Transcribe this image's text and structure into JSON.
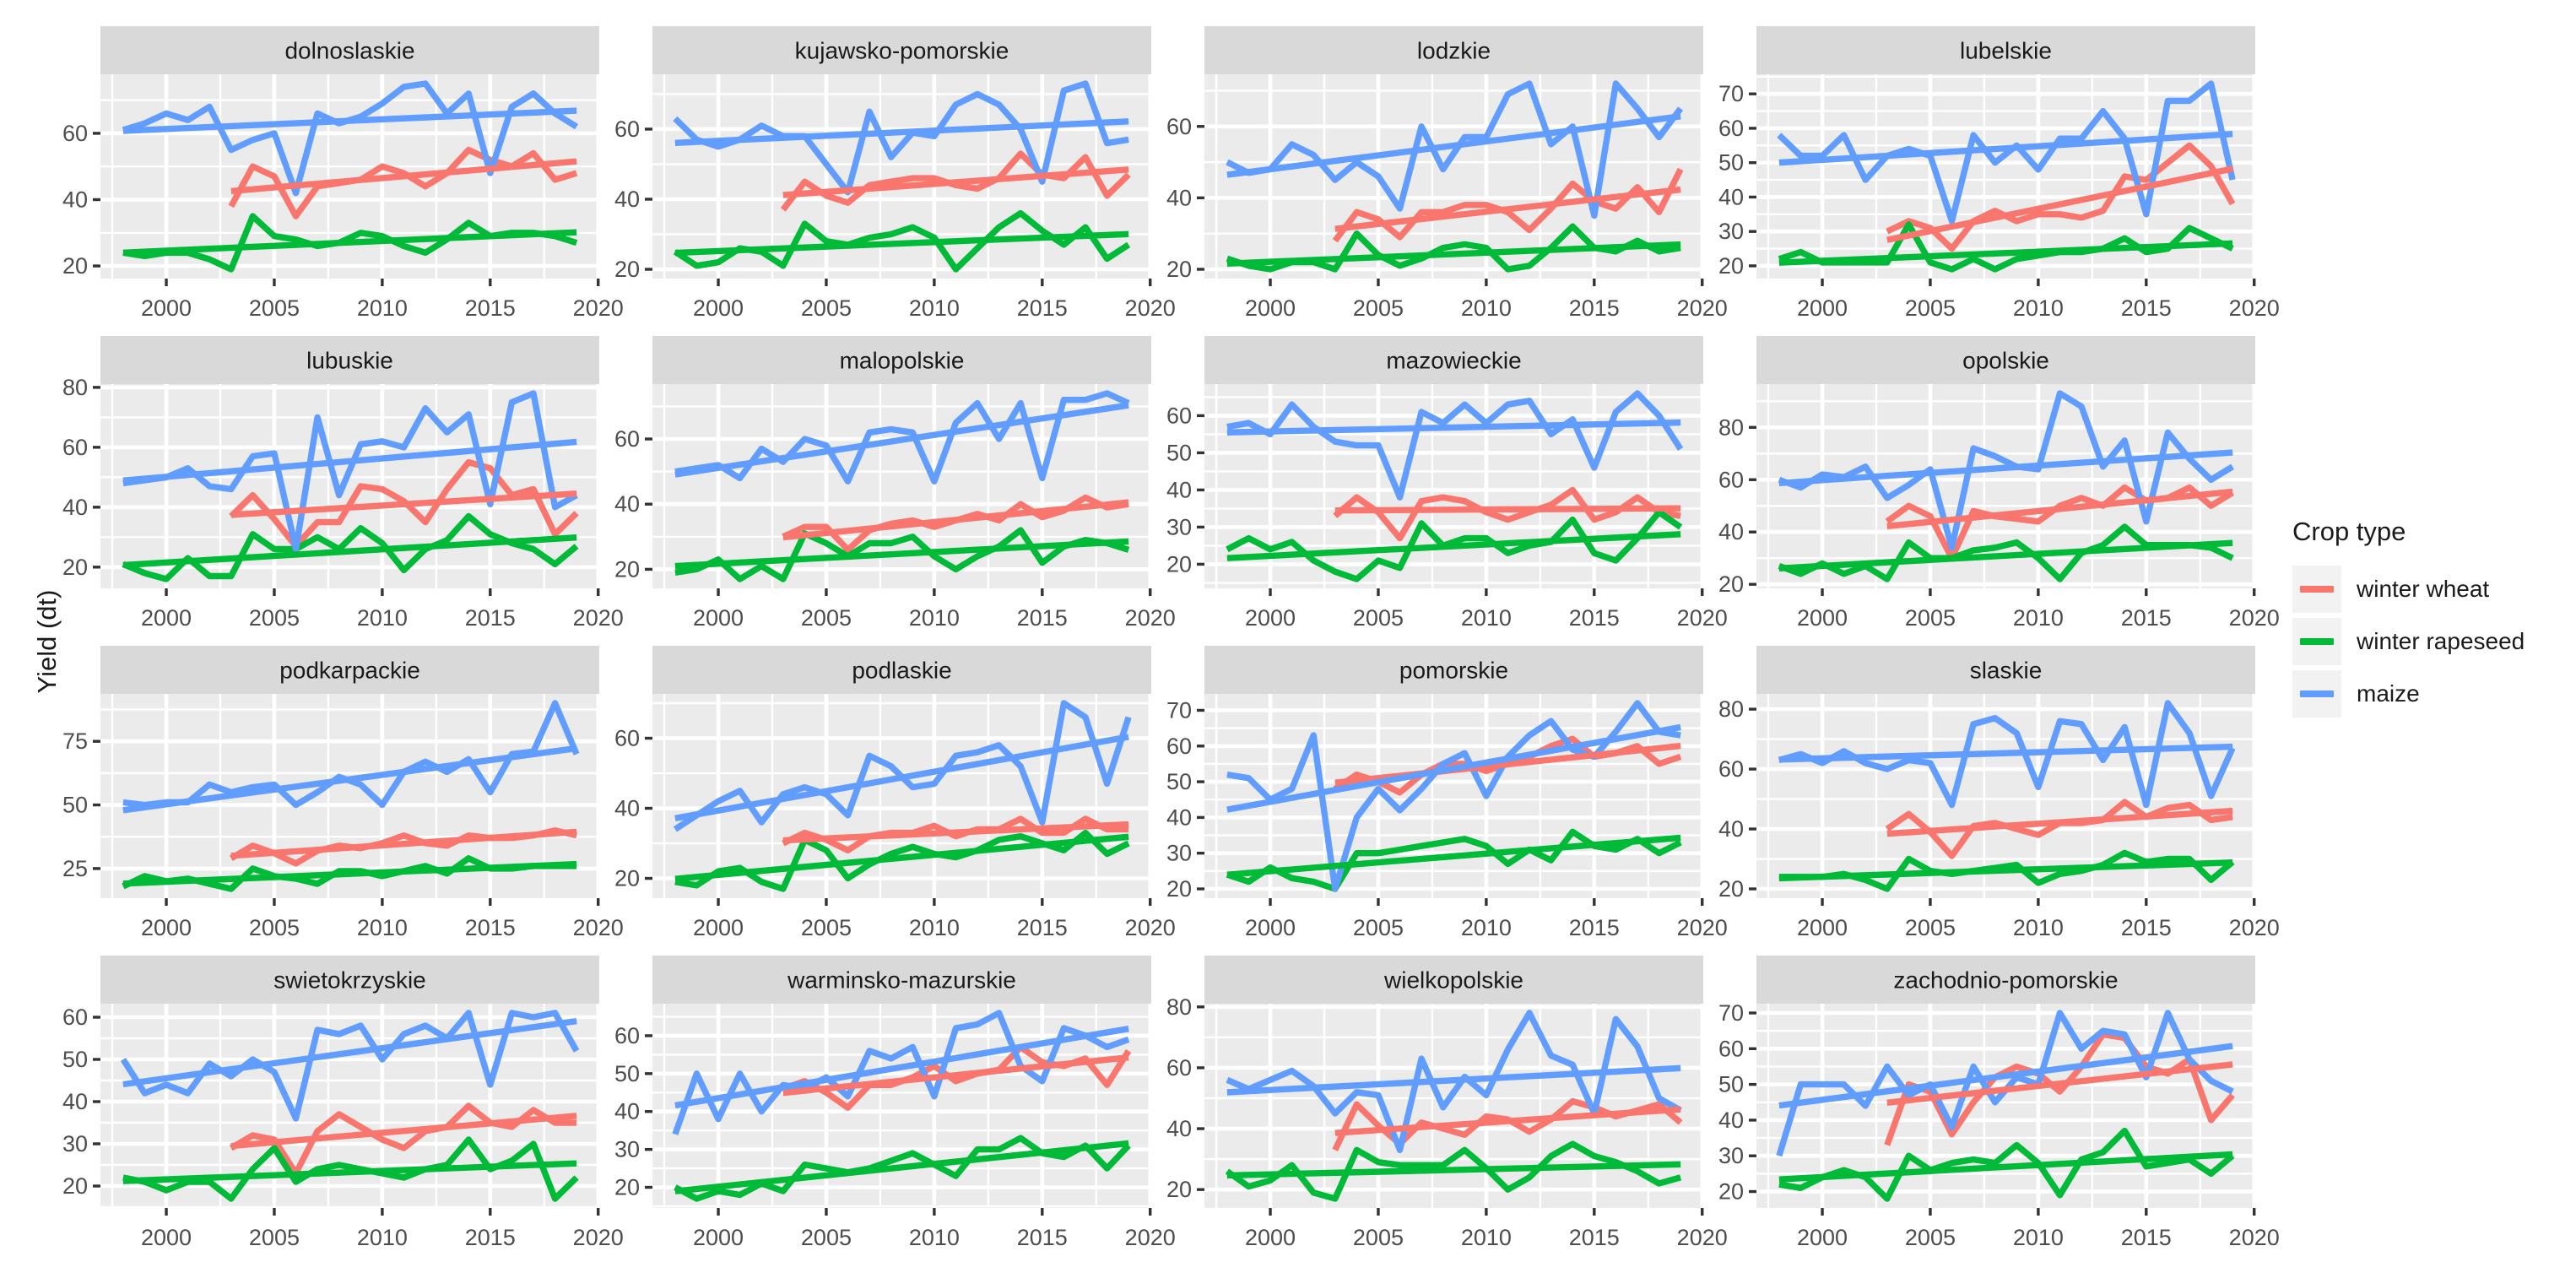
{
  "chart_data": {
    "type": "line",
    "title": "",
    "ylabel": "Yield (dt)",
    "xlabel": "",
    "grid": "on",
    "legend_position": "right",
    "x_ticks": [
      2000,
      2005,
      2010,
      2015,
      2020
    ],
    "x_minor_ticks": [
      1997.5,
      2002.5,
      2007.5,
      2012.5,
      2017.5
    ],
    "x_domain": [
      1996.95,
      2020.05
    ],
    "legend": {
      "title": "Crop type",
      "entries": [
        {
          "label": "winter wheat",
          "color": "#F8766D"
        },
        {
          "label": "winter rapeseed",
          "color": "#00BA38"
        },
        {
          "label": "maize",
          "color": "#619CFF"
        }
      ]
    },
    "series_meta": {
      "winter_wheat": {
        "color": "#F8766D",
        "start_year": 2003
      },
      "winter_rapeseed": {
        "color": "#00BA38",
        "start_year": 1998
      },
      "maize": {
        "color": "#619CFF",
        "start_year": 1998
      }
    },
    "trend": "linear least-squares per series (geom_smooth lm, no CI band)",
    "facets": [
      {
        "name": "dolnoslaskie",
        "y_ticks": [
          20,
          40,
          60
        ],
        "maize": [
          61,
          63,
          66,
          64,
          68,
          55,
          58,
          60,
          42,
          66,
          63,
          65,
          69,
          74,
          75,
          66,
          72,
          48,
          68,
          72,
          66,
          62
        ],
        "winter_wheat": [
          38,
          50,
          47,
          35,
          44,
          45,
          46,
          50,
          48,
          44,
          48,
          55,
          52,
          50,
          54,
          46,
          48
        ],
        "winter_rapeseed": [
          24,
          23,
          24,
          24,
          22,
          19,
          35,
          29,
          28,
          26,
          27,
          30,
          29,
          26,
          24,
          28,
          33,
          29,
          30,
          30,
          29,
          27
        ]
      },
      {
        "name": "kujawsko-pomorskie",
        "y_ticks": [
          20,
          40,
          60
        ],
        "maize": [
          63,
          57,
          55,
          57,
          61,
          58,
          58,
          50,
          42,
          65,
          52,
          59,
          58,
          67,
          70,
          67,
          60,
          45,
          71,
          73,
          56,
          57
        ],
        "winter_wheat": [
          37,
          45,
          41,
          39,
          44,
          45,
          46,
          46,
          44,
          43,
          46,
          53,
          47,
          46,
          52,
          41,
          47
        ],
        "winter_rapeseed": [
          25,
          21,
          22,
          26,
          25,
          21,
          33,
          28,
          27,
          29,
          30,
          32,
          29,
          20,
          26,
          32,
          36,
          31,
          27,
          32,
          23,
          27
        ]
      },
      {
        "name": "lodzkie",
        "y_ticks": [
          20,
          40,
          60
        ],
        "maize": [
          50,
          47,
          48,
          55,
          52,
          45,
          50,
          46,
          37,
          60,
          48,
          57,
          57,
          69,
          72,
          55,
          60,
          35,
          72,
          65,
          57,
          65
        ],
        "winter_wheat": [
          28,
          36,
          34,
          29,
          36,
          36,
          38,
          38,
          36,
          31,
          37,
          44,
          39,
          37,
          43,
          36,
          48
        ],
        "winter_rapeseed": [
          23,
          21,
          20,
          22,
          22,
          20,
          30,
          24,
          21,
          23,
          26,
          27,
          26,
          20,
          21,
          26,
          32,
          26,
          25,
          28,
          25,
          26
        ]
      },
      {
        "name": "lubelskie",
        "y_ticks": [
          20,
          30,
          40,
          50,
          60,
          70
        ],
        "maize": [
          58,
          52,
          52,
          58,
          45,
          52,
          54,
          52,
          33,
          58,
          50,
          55,
          48,
          57,
          57,
          65,
          57,
          35,
          68,
          68,
          73,
          45
        ],
        "winter_wheat": [
          30,
          33,
          31,
          25,
          33,
          36,
          33,
          35,
          35,
          34,
          36,
          46,
          45,
          50,
          55,
          49,
          38
        ],
        "winter_rapeseed": [
          22,
          24,
          21,
          21,
          21,
          21,
          32,
          21,
          19,
          22,
          19,
          22,
          23,
          24,
          24,
          25,
          28,
          24,
          25,
          31,
          28,
          25
        ]
      },
      {
        "name": "lubuskie",
        "y_ticks": [
          20,
          40,
          60,
          80
        ],
        "maize": [
          48,
          49,
          50,
          53,
          47,
          46,
          57,
          58,
          26,
          70,
          44,
          61,
          62,
          60,
          73,
          65,
          71,
          41,
          75,
          78,
          40,
          44
        ],
        "winter_wheat": [
          37,
          44,
          36,
          27,
          35,
          35,
          47,
          46,
          42,
          35,
          46,
          55,
          53,
          44,
          46,
          31,
          38
        ],
        "winter_rapeseed": [
          21,
          18,
          16,
          23,
          17,
          17,
          31,
          26,
          26,
          30,
          26,
          33,
          28,
          19,
          26,
          29,
          37,
          31,
          28,
          26,
          21,
          27
        ]
      },
      {
        "name": "malopolskie",
        "y_ticks": [
          20,
          40,
          60
        ],
        "maize": [
          50,
          51,
          52,
          48,
          57,
          53,
          60,
          58,
          47,
          62,
          63,
          62,
          47,
          65,
          71,
          60,
          71,
          48,
          72,
          72,
          74,
          71
        ],
        "winter_wheat": [
          30,
          33,
          33,
          26,
          32,
          34,
          35,
          33,
          35,
          37,
          35,
          40,
          36,
          38,
          42,
          39,
          40
        ],
        "winter_rapeseed": [
          19,
          20,
          23,
          17,
          21,
          17,
          31,
          28,
          24,
          28,
          28,
          30,
          24,
          20,
          24,
          27,
          32,
          22,
          27,
          29,
          28,
          26
        ]
      },
      {
        "name": "mazowieckie",
        "y_ticks": [
          20,
          30,
          40,
          50,
          60
        ],
        "maize": [
          57,
          58,
          55,
          63,
          57,
          53,
          52,
          52,
          38,
          61,
          58,
          63,
          58,
          63,
          64,
          55,
          59,
          46,
          61,
          66,
          60,
          51
        ],
        "winter_wheat": [
          33,
          38,
          34,
          27,
          37,
          38,
          37,
          34,
          32,
          34,
          36,
          40,
          32,
          34,
          38,
          34,
          33
        ],
        "winter_rapeseed": [
          24,
          27,
          24,
          26,
          21,
          18,
          16,
          21,
          19,
          31,
          25,
          27,
          27,
          23,
          25,
          26,
          32,
          23,
          21,
          27,
          34,
          30
        ]
      },
      {
        "name": "opolskie",
        "y_ticks": [
          20,
          40,
          60,
          80
        ],
        "maize": [
          60,
          57,
          62,
          61,
          65,
          53,
          58,
          64,
          34,
          72,
          69,
          65,
          64,
          93,
          88,
          65,
          75,
          44,
          78,
          68,
          60,
          65
        ],
        "winter_wheat": [
          44,
          50,
          46,
          30,
          48,
          46,
          45,
          44,
          50,
          53,
          50,
          57,
          52,
          53,
          57,
          50,
          55
        ],
        "winter_rapeseed": [
          27,
          24,
          28,
          24,
          27,
          22,
          36,
          30,
          30,
          33,
          34,
          36,
          30,
          22,
          32,
          35,
          42,
          35,
          35,
          35,
          34,
          30
        ]
      },
      {
        "name": "podkarpackie",
        "y_ticks": [
          25,
          50,
          75
        ],
        "maize": [
          51,
          50,
          51,
          51,
          58,
          55,
          57,
          58,
          50,
          55,
          61,
          58,
          50,
          63,
          67,
          63,
          68,
          55,
          70,
          71,
          90,
          70
        ],
        "winter_wheat": [
          29,
          34,
          31,
          27,
          32,
          34,
          33,
          35,
          38,
          35,
          34,
          38,
          37,
          37,
          38,
          40,
          38
        ],
        "winter_rapeseed": [
          18,
          22,
          20,
          21,
          19,
          17,
          25,
          22,
          21,
          19,
          24,
          24,
          22,
          24,
          26,
          23,
          29,
          25,
          25,
          26,
          26,
          26
        ]
      },
      {
        "name": "podlaskie",
        "y_ticks": [
          20,
          40,
          60
        ],
        "maize": [
          34,
          38,
          42,
          45,
          36,
          44,
          46,
          44,
          38,
          55,
          52,
          46,
          47,
          55,
          56,
          58,
          52,
          36,
          70,
          66,
          47,
          66
        ],
        "winter_wheat": [
          30,
          33,
          31,
          28,
          32,
          33,
          33,
          35,
          32,
          34,
          34,
          37,
          33,
          33,
          37,
          34,
          34
        ],
        "winter_rapeseed": [
          19,
          18,
          22,
          23,
          19,
          17,
          31,
          28,
          20,
          24,
          27,
          29,
          27,
          26,
          28,
          31,
          32,
          30,
          28,
          33,
          27,
          30
        ]
      },
      {
        "name": "pomorskie",
        "y_ticks": [
          20,
          30,
          40,
          50,
          60,
          70
        ],
        "maize": [
          52,
          51,
          45,
          48,
          63,
          20,
          40,
          48,
          42,
          48,
          55,
          58,
          46,
          57,
          63,
          67,
          59,
          57,
          64,
          72,
          64,
          63
        ],
        "winter_wheat": [
          48,
          52,
          50,
          47,
          52,
          55,
          55,
          53,
          55,
          57,
          60,
          62,
          57,
          58,
          60,
          55,
          57
        ],
        "winter_rapeseed": [
          24,
          22,
          26,
          23,
          22,
          20,
          30,
          30,
          31,
          32,
          33,
          34,
          32,
          27,
          31,
          28,
          36,
          32,
          31,
          34,
          30,
          33
        ]
      },
      {
        "name": "slaskie",
        "y_ticks": [
          20,
          40,
          60,
          80
        ],
        "maize": [
          63,
          65,
          62,
          66,
          62,
          60,
          63,
          62,
          48,
          75,
          77,
          72,
          54,
          76,
          75,
          63,
          74,
          48,
          82,
          72,
          51,
          67
        ],
        "winter_wheat": [
          40,
          45,
          39,
          31,
          41,
          42,
          40,
          38,
          42,
          42,
          43,
          49,
          44,
          47,
          48,
          43,
          44
        ],
        "winter_rapeseed": [
          24,
          24,
          24,
          25,
          23,
          20,
          30,
          26,
          25,
          26,
          27,
          28,
          22,
          25,
          26,
          28,
          32,
          29,
          30,
          30,
          23,
          29
        ]
      },
      {
        "name": "swietokrzyskie",
        "y_ticks": [
          20,
          30,
          40,
          50,
          60
        ],
        "maize": [
          50,
          42,
          44,
          42,
          49,
          46,
          50,
          47,
          36,
          57,
          56,
          58,
          50,
          56,
          58,
          55,
          61,
          44,
          61,
          60,
          61,
          52
        ],
        "winter_wheat": [
          29,
          32,
          31,
          23,
          33,
          37,
          34,
          31,
          29,
          33,
          34,
          39,
          35,
          34,
          38,
          35,
          35
        ],
        "winter_rapeseed": [
          22,
          21,
          19,
          21,
          21,
          17,
          24,
          29,
          21,
          24,
          25,
          24,
          23,
          22,
          24,
          25,
          31,
          24,
          26,
          30,
          17,
          22
        ]
      },
      {
        "name": "warminsko-mazurskie",
        "y_ticks": [
          20,
          30,
          40,
          50,
          60
        ],
        "maize": [
          34,
          50,
          38,
          50,
          40,
          47,
          46,
          49,
          44,
          56,
          54,
          57,
          44,
          62,
          63,
          66,
          52,
          48,
          62,
          60,
          57,
          59
        ],
        "winter_wheat": [
          46,
          48,
          45,
          41,
          47,
          47,
          49,
          52,
          48,
          50,
          51,
          57,
          53,
          52,
          54,
          47,
          56
        ],
        "winter_rapeseed": [
          20,
          17,
          19,
          18,
          21,
          19,
          26,
          25,
          24,
          25,
          27,
          29,
          26,
          23,
          30,
          30,
          33,
          29,
          28,
          31,
          25,
          31
        ]
      },
      {
        "name": "wielkopolskie",
        "y_ticks": [
          20,
          40,
          60,
          80
        ],
        "maize": [
          56,
          53,
          56,
          59,
          54,
          45,
          52,
          51,
          33,
          63,
          47,
          57,
          51,
          66,
          78,
          64,
          61,
          45,
          76,
          67,
          50,
          46
        ],
        "winter_wheat": [
          33,
          48,
          41,
          35,
          42,
          40,
          38,
          44,
          43,
          39,
          43,
          49,
          47,
          44,
          46,
          48,
          42
        ],
        "winter_rapeseed": [
          26,
          21,
          23,
          28,
          19,
          17,
          33,
          29,
          28,
          28,
          28,
          33,
          27,
          20,
          24,
          31,
          35,
          31,
          29,
          26,
          22,
          24
        ]
      },
      {
        "name": "zachodnio-pomorskie",
        "y_ticks": [
          20,
          30,
          40,
          50,
          60,
          70
        ],
        "maize": [
          30,
          50,
          50,
          50,
          44,
          55,
          47,
          50,
          38,
          55,
          45,
          52,
          50,
          70,
          60,
          65,
          64,
          52,
          70,
          57,
          51,
          48
        ],
        "winter_wheat": [
          33,
          50,
          48,
          36,
          45,
          52,
          55,
          53,
          48,
          55,
          64,
          63,
          55,
          53,
          57,
          40,
          47
        ],
        "winter_rapeseed": [
          22,
          21,
          24,
          26,
          24,
          18,
          30,
          26,
          28,
          29,
          28,
          33,
          28,
          19,
          29,
          31,
          37,
          27,
          28,
          29,
          25,
          30
        ]
      }
    ],
    "colors": {
      "panel_bg": "#EBEBEB",
      "strip_bg": "#D9D9D9",
      "grid": "#FFFFFF",
      "tick_text": "#4D4D4D",
      "text": "#1A1A1A",
      "legend_key_bg": "#F2F2F2"
    }
  }
}
